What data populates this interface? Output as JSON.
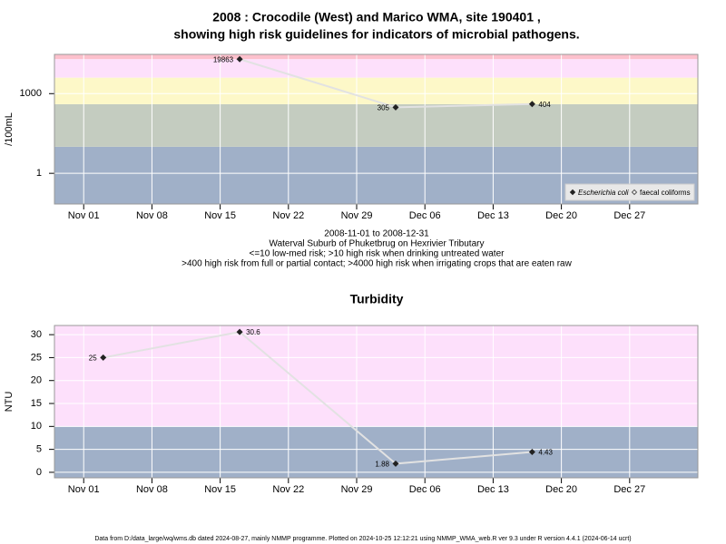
{
  "footer": "Data from D:/data_large/wq/wms.db dated 2024-08-27, mainly NMMP programme. Plotted on 2024-10-25 12:12:21 using NMMP_WMA_web.R ver 9.3 under R version 4.4.1 (2024-06-14 ucrt)",
  "chart_data": [
    {
      "type": "line",
      "title": "2008 : Crocodile (West) and Marico WMA, site 190401 ,\nshowing high risk guidelines for indicators of microbial pathogens.",
      "notes": [
        "2008-11-01 to 2008-12-31",
        "Waterval Suburb of Phuketbrug on Hexrivier Tributary",
        "<=10 low-med risk; >10 high risk when drinking untreated water",
        ">400 high risk from full or partial contact; >4000 high risk when irrigating crops that are eaten raw"
      ],
      "y_label": "/100mL",
      "log_scale": true,
      "grid": true,
      "legend_position": "bottom-right",
      "x": [
        "2008-11-17",
        "2008-12-03",
        "2008-12-17"
      ],
      "series": [
        {
          "name": "Escherichia coli",
          "color": "#222222",
          "line_color": "#e2e2e2",
          "values": [
            19863,
            305,
            404
          ]
        },
        {
          "name": "faecal coliforms",
          "color": "#555555",
          "values": [
            null,
            null,
            null
          ]
        }
      ],
      "bands": [
        {
          "from": 0.07,
          "to": 10,
          "color": "#a0b0c8"
        },
        {
          "from": 10,
          "to": 400,
          "color": "#c4ccc0"
        },
        {
          "from": 400,
          "to": 4000,
          "color": "#fdf8c8"
        },
        {
          "from": 4000,
          "to": 20000,
          "color": "#fde0fb"
        },
        {
          "from": 20000,
          "to": 30000,
          "color": "#fcc0cc"
        }
      ],
      "xlim": [
        "2008-10-29",
        "2009-01-03"
      ],
      "xticks": [
        {
          "value": "2008-11-01",
          "label": "Nov 01"
        },
        {
          "value": "2008-11-08",
          "label": "Nov 08"
        },
        {
          "value": "2008-11-15",
          "label": "Nov 15"
        },
        {
          "value": "2008-11-22",
          "label": "Nov 22"
        },
        {
          "value": "2008-11-29",
          "label": "Nov 29"
        },
        {
          "value": "2008-12-06",
          "label": "Dec 06"
        },
        {
          "value": "2008-12-13",
          "label": "Dec 13"
        },
        {
          "value": "2008-12-20",
          "label": "Dec 20"
        },
        {
          "value": "2008-12-27",
          "label": "Dec 27"
        }
      ],
      "ylim": [
        0.07,
        30000
      ],
      "yticks": [
        1,
        1000
      ]
    },
    {
      "type": "line",
      "title": "Turbidity",
      "y_label": "NTU",
      "log_scale": false,
      "grid": true,
      "x": [
        "2008-11-03",
        "2008-11-17",
        "2008-12-03",
        "2008-12-17"
      ],
      "series": [
        {
          "name": "Turbidity",
          "color": "#222222",
          "line_color": "#e2e2e2",
          "values": [
            25,
            30.6,
            1.88,
            4.43
          ]
        }
      ],
      "bands": [
        {
          "from": -1.2,
          "to": 10,
          "color": "#a0b0c8"
        },
        {
          "from": 10,
          "to": 32,
          "color": "#fde0fb"
        }
      ],
      "xlim": [
        "2008-10-29",
        "2009-01-03"
      ],
      "xticks": [
        {
          "value": "2008-11-01",
          "label": "Nov 01"
        },
        {
          "value": "2008-11-08",
          "label": "Nov 08"
        },
        {
          "value": "2008-11-15",
          "label": "Nov 15"
        },
        {
          "value": "2008-11-22",
          "label": "Nov 22"
        },
        {
          "value": "2008-11-29",
          "label": "Nov 29"
        },
        {
          "value": "2008-12-06",
          "label": "Dec 06"
        },
        {
          "value": "2008-12-13",
          "label": "Dec 13"
        },
        {
          "value": "2008-12-20",
          "label": "Dec 20"
        },
        {
          "value": "2008-12-27",
          "label": "Dec 27"
        }
      ],
      "ylim": [
        -1.2,
        32
      ],
      "yticks": [
        0,
        5,
        10,
        15,
        20,
        25,
        30
      ]
    }
  ]
}
